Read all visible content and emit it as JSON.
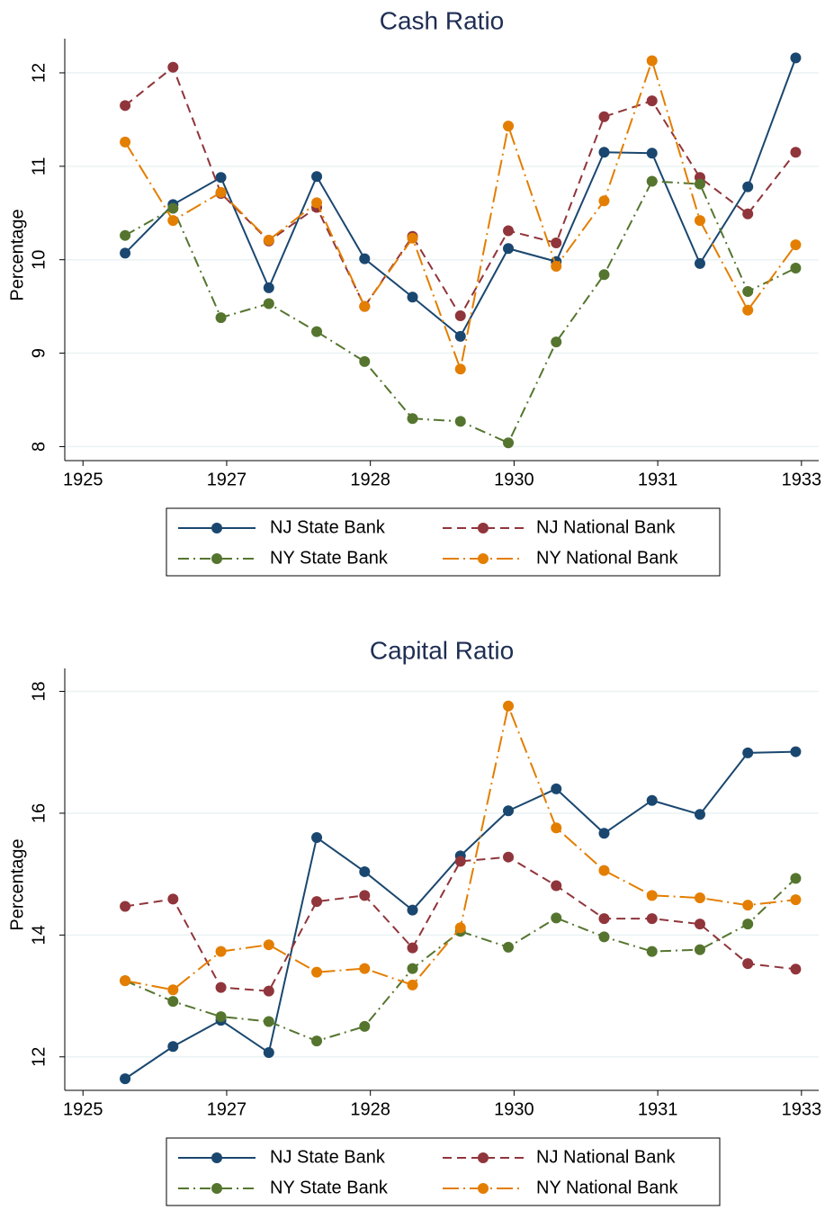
{
  "chart_data": [
    {
      "type": "line",
      "title": "Cash Ratio",
      "y_label": "Percentage",
      "x": [
        1926,
        1926.5,
        1927,
        1927.5,
        1928,
        1928.5,
        1929,
        1929.5,
        1930,
        1930.5,
        1931,
        1931.5,
        1932,
        1932.5,
        1933
      ],
      "xlim": [
        1925.37,
        1933.24
      ],
      "xticks": [
        {
          "value": 1925.56,
          "label": "1925"
        },
        {
          "value": 1927.06,
          "label": "1927"
        },
        {
          "value": 1928.56,
          "label": "1928"
        },
        {
          "value": 1930.06,
          "label": "1930"
        },
        {
          "value": 1931.56,
          "label": "1931"
        },
        {
          "value": 1933.06,
          "label": "1933"
        }
      ],
      "ylim": [
        7.85,
        12.25
      ],
      "yticks": [
        8,
        9,
        10,
        11,
        12
      ],
      "grid": true,
      "series": [
        {
          "name": "NJ State Bank",
          "color": "#1a476f",
          "dash": "solid",
          "values": [
            10.07,
            10.59,
            10.88,
            9.7,
            10.89,
            10.01,
            9.6,
            9.18,
            10.12,
            9.98,
            11.15,
            11.14,
            9.96,
            10.78,
            12.16
          ]
        },
        {
          "name": "NJ National Bank",
          "color": "#90353b",
          "dash": "dash",
          "values": [
            11.65,
            12.06,
            10.71,
            10.2,
            10.56,
            9.5,
            10.25,
            9.4,
            10.31,
            10.18,
            11.53,
            11.7,
            10.88,
            10.49,
            11.15
          ]
        },
        {
          "name": "NY State Bank",
          "color": "#55752f",
          "dash": "dashdot",
          "values": [
            10.26,
            10.55,
            9.38,
            9.53,
            9.23,
            8.91,
            8.3,
            8.27,
            8.04,
            9.12,
            9.84,
            10.84,
            10.81,
            9.66,
            9.91
          ]
        },
        {
          "name": "NY National Bank",
          "color": "#e37e00",
          "dash": "longdashdot",
          "values": [
            11.26,
            10.42,
            10.72,
            10.21,
            10.61,
            9.5,
            10.23,
            8.83,
            11.43,
            9.93,
            10.63,
            12.13,
            10.42,
            9.46,
            10.16
          ]
        }
      ]
    },
    {
      "type": "line",
      "title": "Capital Ratio",
      "y_label": "Percentage",
      "x": [
        1926,
        1926.5,
        1927,
        1927.5,
        1928,
        1928.5,
        1929,
        1929.5,
        1930,
        1930.5,
        1931,
        1931.5,
        1932,
        1932.5,
        1933
      ],
      "xlim": [
        1925.37,
        1933.24
      ],
      "xticks": [
        {
          "value": 1925.56,
          "label": "1925"
        },
        {
          "value": 1927.06,
          "label": "1927"
        },
        {
          "value": 1928.56,
          "label": "1928"
        },
        {
          "value": 1930.06,
          "label": "1930"
        },
        {
          "value": 1931.56,
          "label": "1931"
        },
        {
          "value": 1933.06,
          "label": "1933"
        }
      ],
      "ylim": [
        11.45,
        18.2
      ],
      "yticks": [
        12,
        14,
        16,
        18
      ],
      "grid": true,
      "series": [
        {
          "name": "NJ State Bank",
          "color": "#1a476f",
          "dash": "solid",
          "values": [
            11.64,
            12.17,
            12.6,
            12.07,
            15.6,
            15.04,
            14.41,
            15.3,
            16.04,
            16.4,
            15.67,
            16.21,
            15.98,
            16.99,
            17.01
          ]
        },
        {
          "name": "NJ National Bank",
          "color": "#90353b",
          "dash": "dash",
          "values": [
            14.47,
            14.59,
            13.14,
            13.08,
            14.55,
            14.65,
            13.79,
            15.21,
            15.28,
            14.81,
            14.27,
            14.27,
            14.18,
            13.53,
            13.44
          ]
        },
        {
          "name": "NY State Bank",
          "color": "#55752f",
          "dash": "dashdot",
          "values": [
            13.25,
            12.91,
            12.66,
            12.58,
            12.26,
            12.5,
            13.45,
            14.06,
            13.8,
            14.28,
            13.97,
            13.73,
            13.76,
            14.18,
            14.93
          ]
        },
        {
          "name": "NY National Bank",
          "color": "#e37e00",
          "dash": "longdashdot",
          "values": [
            13.25,
            13.1,
            13.73,
            13.84,
            13.39,
            13.45,
            13.18,
            14.12,
            17.76,
            15.76,
            15.06,
            14.65,
            14.61,
            14.49,
            14.58
          ]
        }
      ]
    }
  ]
}
